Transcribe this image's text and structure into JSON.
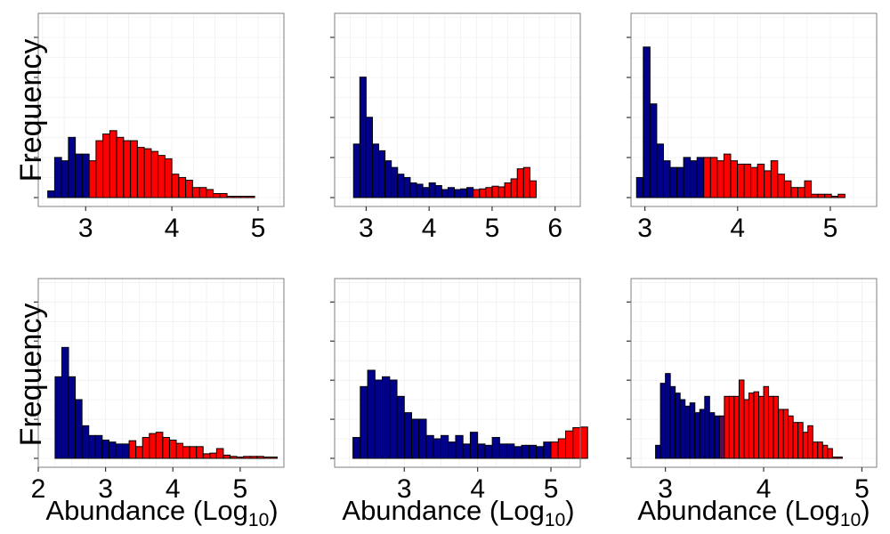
{
  "y_axis_label": "Frequency",
  "x_axis_label": {
    "main": "Abundance (Log",
    "subscript": "10",
    "close": ")"
  },
  "colors": {
    "low": "#00008b",
    "high": "#ff0000",
    "overlap": "#5a0a5a",
    "outline": "#000000",
    "grid": "#ebebeb",
    "panel_border": "#7f7f7f"
  },
  "chart_data": [
    {
      "type": "bar",
      "ylabel": "Frequency",
      "xlabel": "",
      "xlim": [
        2.45,
        5.3
      ],
      "ylim": [
        0,
        27
      ],
      "xticks": [
        3,
        4,
        5
      ],
      "bin_width": 0.08,
      "x_start": 2.56,
      "split_index": 6,
      "values": [
        1,
        6,
        5.5,
        9,
        6.5,
        6.5,
        5.5,
        8.5,
        9.5,
        10,
        9,
        8.5,
        8.5,
        7.5,
        7.3,
        6.9,
        6.3,
        5.8,
        3.5,
        3,
        2.6,
        1.5,
        1.5,
        1.2,
        0.6,
        0.6,
        0.2,
        0.2,
        0.2,
        0.2
      ]
    },
    {
      "type": "bar",
      "ylabel": "",
      "xlabel": "",
      "xlim": [
        2.5,
        6.4
      ],
      "ylim": [
        0,
        27
      ],
      "xticks": [
        3,
        4,
        5,
        6
      ],
      "bin_width": 0.1,
      "x_start": 2.8,
      "split_index": 19,
      "values": [
        8,
        18,
        12,
        8,
        7,
        5.5,
        4.5,
        3.5,
        3,
        2.2,
        2,
        1.5,
        2.2,
        1.8,
        1.2,
        1.5,
        1.2,
        1.3,
        1.5,
        1.2,
        1.3,
        1.5,
        1.7,
        1.6,
        2.2,
        2.8,
        4.3,
        4.5,
        2.5
      ]
    },
    {
      "type": "bar",
      "ylabel": "",
      "xlabel": "",
      "xlim": [
        2.85,
        5.5
      ],
      "ylim": [
        0,
        27
      ],
      "xticks": [
        3,
        4,
        5
      ],
      "bin_width": 0.0725,
      "x_start": 2.91,
      "split_index": 10,
      "values": [
        3,
        22.5,
        14,
        8,
        5.5,
        4.5,
        4.5,
        6,
        5.5,
        6,
        6,
        6,
        5.5,
        6.5,
        5.5,
        5,
        5,
        4.5,
        5,
        4,
        5.5,
        3.5,
        2.5,
        1.5,
        1.5,
        2.5,
        0.5,
        0.5,
        0.5,
        0.2,
        0.5
      ]
    },
    {
      "type": "bar",
      "ylabel": "Frequency",
      "xlabel": "Abundance (Log10)",
      "xlim": [
        2.0,
        5.65
      ],
      "ylim": [
        0,
        27
      ],
      "xticks": [
        2,
        3,
        4,
        5
      ],
      "bin_width": 0.1,
      "x_start": 2.25,
      "split_index": 11,
      "values": [
        12.5,
        17,
        12.5,
        9,
        5,
        3.5,
        3.5,
        2.8,
        2.5,
        2.2,
        2.2,
        2.7,
        1.8,
        3.2,
        3.8,
        4,
        3.2,
        2.8,
        2.3,
        1.8,
        1.8,
        1.8,
        0.7,
        0.8,
        1.5,
        0.5,
        0.3,
        0.2,
        0.3,
        0.3,
        0.3,
        0.2,
        0.2
      ]
    },
    {
      "type": "bar",
      "ylabel": "",
      "xlabel": "Abundance (Log10)",
      "xlim": [
        2.05,
        5.4
      ],
      "ylim": [
        0,
        27
      ],
      "xticks": [
        3,
        4,
        5
      ],
      "bin_width": 0.1,
      "x_start": 2.3,
      "split_index": 27,
      "values": [
        3.2,
        11,
        13.5,
        12,
        12.5,
        12,
        9.5,
        7,
        6,
        6,
        3.5,
        3,
        3.5,
        2.5,
        3.5,
        2.2,
        4,
        2.2,
        2,
        3.2,
        2.2,
        2.2,
        1.8,
        2,
        2,
        1.8,
        2.5,
        2.5,
        3,
        4.2,
        4.7,
        4.8
      ]
    },
    {
      "type": "bar",
      "ylabel": "",
      "xlabel": "Abundance (Log10)",
      "xlim": [
        2.65,
        5.15
      ],
      "ylim": [
        0,
        27
      ],
      "xticks": [
        3,
        4,
        5
      ],
      "bin_width": 0.05,
      "x_start": 2.9,
      "split_index": 13,
      "overlap_index": 13,
      "values": [
        2,
        11.5,
        13,
        11,
        10,
        9,
        8,
        8.5,
        7,
        7.5,
        9.5,
        7,
        6.5,
        6.5,
        9.5,
        9.5,
        9.5,
        12,
        9,
        10,
        10.2,
        9.5,
        11,
        9.5,
        9.5,
        7.5,
        7.5,
        6.5,
        5.5,
        5.5,
        4,
        5,
        2.5,
        2.5,
        2,
        1.5,
        0.2,
        0.2
      ]
    }
  ]
}
